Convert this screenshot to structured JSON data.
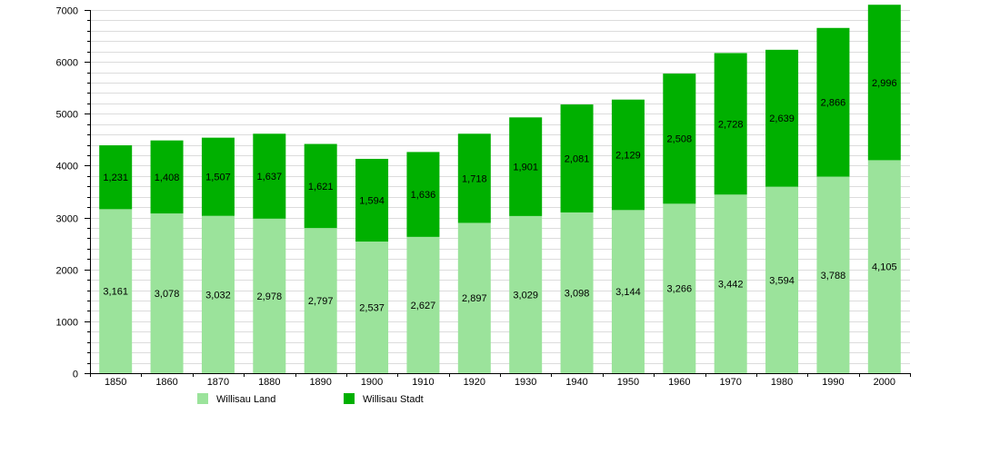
{
  "chart_data": {
    "type": "bar",
    "stacked": true,
    "title": "",
    "xlabel": "",
    "ylabel": "",
    "categories": [
      "1850",
      "1860",
      "1870",
      "1880",
      "1890",
      "1900",
      "1910",
      "1920",
      "1930",
      "1940",
      "1950",
      "1960",
      "1970",
      "1980",
      "1990",
      "2000"
    ],
    "series": [
      {
        "name": "Willisau Land",
        "color": "#9be39b",
        "values": [
          3161,
          3078,
          3032,
          2978,
          2797,
          2537,
          2627,
          2897,
          3029,
          3098,
          3144,
          3266,
          3442,
          3594,
          3788,
          4105
        ],
        "labels": [
          "3,161",
          "3,078",
          "3,032",
          "2,978",
          "2,797",
          "2,537",
          "2,627",
          "2,897",
          "3,029",
          "3,098",
          "3,144",
          "3,266",
          "3,442",
          "3,594",
          "3,788",
          "4,105"
        ]
      },
      {
        "name": "Willisau Stadt",
        "color": "#00b000",
        "values": [
          1231,
          1408,
          1507,
          1637,
          1621,
          1594,
          1636,
          1718,
          1901,
          2081,
          2129,
          2508,
          2728,
          2639,
          2866,
          2996
        ],
        "labels": [
          "1,231",
          "1,408",
          "1,507",
          "1,637",
          "1,621",
          "1,594",
          "1,636",
          "1,718",
          "1,901",
          "2,081",
          "2,129",
          "2,508",
          "2,728",
          "2,639",
          "2,866",
          "2,996"
        ]
      }
    ],
    "ylim": [
      0,
      7000
    ],
    "yticks": [
      "0",
      "1000",
      "2000",
      "3000",
      "4000",
      "5000",
      "6000",
      "7000"
    ],
    "grid_step": 200,
    "grid": true,
    "legend_position": "bottom-left"
  }
}
